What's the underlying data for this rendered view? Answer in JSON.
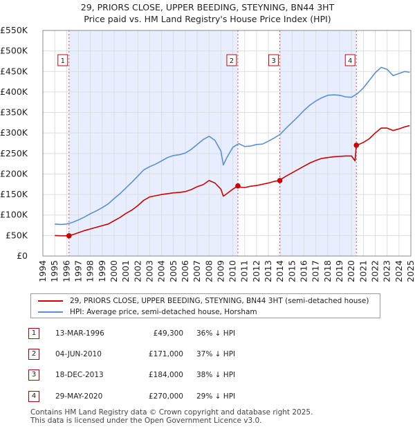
{
  "chart_data": {
    "type": "line",
    "title": "29, PRIORS CLOSE, UPPER BEEDING, STEYNING, BN44 3HT",
    "subtitle": "Price paid vs. HM Land Registry's House Price Index (HPI)",
    "xlabel": "",
    "ylabel": "",
    "xlim": [
      1994,
      2025
    ],
    "ylim": [
      0,
      550000
    ],
    "x_ticks": [
      1994,
      1995,
      1996,
      1997,
      1998,
      1999,
      2000,
      2001,
      2002,
      2003,
      2004,
      2005,
      2006,
      2007,
      2008,
      2009,
      2010,
      2011,
      2012,
      2013,
      2014,
      2015,
      2016,
      2017,
      2018,
      2019,
      2020,
      2021,
      2022,
      2023,
      2024,
      2025
    ],
    "y_ticks": [
      {
        "value": 0,
        "label": "£0"
      },
      {
        "value": 50000,
        "label": "£50K"
      },
      {
        "value": 100000,
        "label": "£100K"
      },
      {
        "value": 150000,
        "label": "£150K"
      },
      {
        "value": 200000,
        "label": "£200K"
      },
      {
        "value": 250000,
        "label": "£250K"
      },
      {
        "value": 300000,
        "label": "£300K"
      },
      {
        "value": 350000,
        "label": "£350K"
      },
      {
        "value": 400000,
        "label": "£400K"
      },
      {
        "value": 450000,
        "label": "£450K"
      },
      {
        "value": 500000,
        "label": "£500K"
      },
      {
        "value": 550000,
        "label": "£550K"
      }
    ],
    "grid": true,
    "series": [
      {
        "name": "29, PRIORS CLOSE, UPPER BEEDING, STEYNING, BN44 3HT (semi-detached house)",
        "color": "#cc0000",
        "x": [
          1995.0,
          1995.5,
          1996.2,
          1996.5,
          1997.0,
          1997.5,
          1998.0,
          1998.5,
          1999.0,
          1999.5,
          2000.0,
          2000.5,
          2001.0,
          2001.5,
          2002.0,
          2002.5,
          2003.0,
          2003.5,
          2004.0,
          2004.5,
          2005.0,
          2005.5,
          2006.0,
          2006.5,
          2007.0,
          2007.5,
          2008.0,
          2008.5,
          2009.0,
          2009.2,
          2009.5,
          2010.0,
          2010.43,
          2010.5,
          2011.0,
          2011.5,
          2012.0,
          2012.5,
          2013.0,
          2013.5,
          2013.96,
          2014.0,
          2014.5,
          2015.0,
          2015.5,
          2016.0,
          2016.5,
          2017.0,
          2017.5,
          2018.0,
          2018.5,
          2019.0,
          2019.5,
          2020.0,
          2020.3,
          2020.41,
          2020.6,
          2021.0,
          2021.5,
          2022.0,
          2022.5,
          2023.0,
          2023.5,
          2024.0,
          2024.5,
          2024.9
        ],
        "values": [
          50000,
          49500,
          49300,
          52000,
          57000,
          62000,
          66000,
          70000,
          74000,
          78000,
          86000,
          94000,
          104000,
          112000,
          123000,
          136000,
          144000,
          147000,
          150000,
          152000,
          154000,
          155000,
          157000,
          162000,
          169000,
          174000,
          184000,
          178000,
          163000,
          146000,
          152000,
          163000,
          171000,
          168000,
          167000,
          170000,
          172000,
          175000,
          178000,
          182000,
          184000,
          186000,
          195000,
          203000,
          211000,
          219000,
          227000,
          233000,
          238000,
          240000,
          242000,
          243000,
          244000,
          244000,
          232000,
          270000,
          272000,
          277000,
          286000,
          300000,
          312000,
          312000,
          306000,
          310000,
          315000,
          318000
        ]
      },
      {
        "name": "HPI: Average price, semi-detached house, Horsham",
        "color": "#5b8fd4",
        "x": [
          1995.0,
          1995.5,
          1996.0,
          1996.5,
          1997.0,
          1997.5,
          1998.0,
          1998.5,
          1999.0,
          1999.5,
          2000.0,
          2000.5,
          2001.0,
          2001.5,
          2002.0,
          2002.5,
          2003.0,
          2003.5,
          2004.0,
          2004.5,
          2005.0,
          2005.5,
          2006.0,
          2006.5,
          2007.0,
          2007.5,
          2008.0,
          2008.5,
          2009.0,
          2009.2,
          2009.5,
          2010.0,
          2010.5,
          2011.0,
          2011.5,
          2012.0,
          2012.5,
          2013.0,
          2013.5,
          2014.0,
          2014.5,
          2015.0,
          2015.5,
          2016.0,
          2016.5,
          2017.0,
          2017.5,
          2018.0,
          2018.5,
          2019.0,
          2019.5,
          2020.0,
          2020.5,
          2021.0,
          2021.5,
          2022.0,
          2022.5,
          2023.0,
          2023.5,
          2024.0,
          2024.5,
          2024.9
        ],
        "values": [
          78000,
          77000,
          78000,
          82000,
          88000,
          95000,
          103000,
          110000,
          118000,
          127000,
          140000,
          152000,
          166000,
          180000,
          195000,
          210000,
          218000,
          224000,
          232000,
          240000,
          245000,
          247000,
          251000,
          260000,
          272000,
          284000,
          292000,
          282000,
          256000,
          222000,
          240000,
          265000,
          274000,
          267000,
          268000,
          272000,
          273000,
          280000,
          288000,
          297000,
          312000,
          326000,
          340000,
          355000,
          368000,
          378000,
          386000,
          392000,
          393000,
          392000,
          388000,
          387000,
          396000,
          410000,
          428000,
          447000,
          460000,
          455000,
          440000,
          445000,
          450000,
          448000
        ]
      }
    ],
    "sales": [
      {
        "num": "1",
        "x": 1996.2,
        "value": 49300
      },
      {
        "num": "2",
        "x": 2010.43,
        "value": 171000
      },
      {
        "num": "3",
        "x": 2013.96,
        "value": 184000
      },
      {
        "num": "4",
        "x": 2020.41,
        "value": 270000
      }
    ]
  },
  "legend": {
    "property": "29, PRIORS CLOSE, UPPER BEEDING, STEYNING, BN44 3HT (semi-detached house)",
    "hpi": "HPI: Average price, semi-detached house, Horsham"
  },
  "sales_table": [
    {
      "num": "1",
      "date": "13-MAR-1996",
      "price": "£49,300",
      "hpi": "36% ↓ HPI"
    },
    {
      "num": "2",
      "date": "04-JUN-2010",
      "price": "£171,000",
      "hpi": "37% ↓ HPI"
    },
    {
      "num": "3",
      "date": "18-DEC-2013",
      "price": "£184,000",
      "hpi": "38% ↓ HPI"
    },
    {
      "num": "4",
      "date": "29-MAY-2020",
      "price": "£270,000",
      "hpi": "29% ↓ HPI"
    }
  ],
  "footer": {
    "line1": "Contains HM Land Registry data © Crown copyright and database right 2025.",
    "line2": "This data is licensed under the Open Government Licence v3.0."
  },
  "colors": {
    "property": "#cc0000",
    "hpi": "#5b8fd4",
    "shade": "#e6eeff",
    "sale_line": "#cc0000"
  }
}
